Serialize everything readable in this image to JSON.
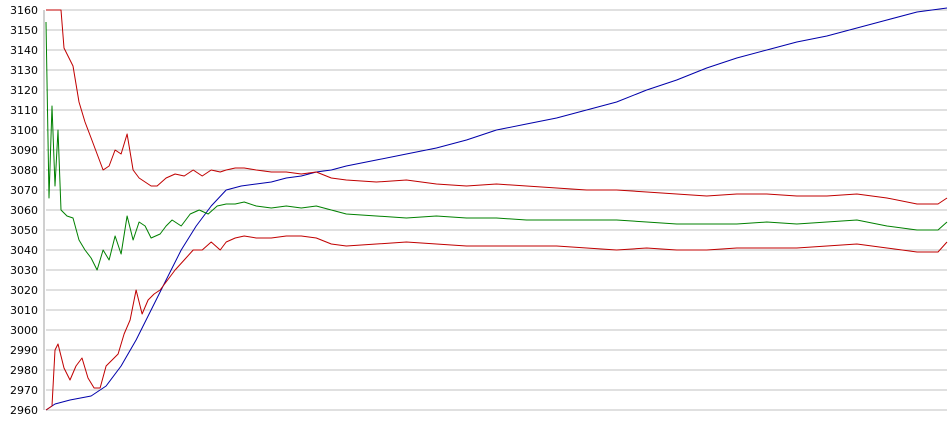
{
  "chart_data": {
    "type": "line",
    "title": "",
    "xlabel": "",
    "ylabel": "",
    "ylim": [
      2960,
      3160
    ],
    "yticks": [
      2960,
      2970,
      2980,
      2990,
      3000,
      3010,
      3020,
      3030,
      3040,
      3050,
      3060,
      3070,
      3080,
      3090,
      3100,
      3110,
      3120,
      3130,
      3140,
      3150,
      3160
    ],
    "grid": true,
    "legend": "none",
    "x_range": [
      0,
      300
    ],
    "series": [
      {
        "color": "#0000aa",
        "points": [
          [
            0,
            2960
          ],
          [
            3,
            2963
          ],
          [
            8,
            2965
          ],
          [
            15,
            2967
          ],
          [
            20,
            2972
          ],
          [
            25,
            2982
          ],
          [
            30,
            2995
          ],
          [
            35,
            3010
          ],
          [
            40,
            3025
          ],
          [
            45,
            3040
          ],
          [
            50,
            3052
          ],
          [
            55,
            3062
          ],
          [
            60,
            3070
          ],
          [
            65,
            3072
          ],
          [
            70,
            3073
          ],
          [
            75,
            3074
          ],
          [
            80,
            3076
          ],
          [
            85,
            3077
          ],
          [
            90,
            3079
          ],
          [
            95,
            3080
          ],
          [
            100,
            3082
          ],
          [
            110,
            3085
          ],
          [
            120,
            3088
          ],
          [
            130,
            3091
          ],
          [
            140,
            3095
          ],
          [
            150,
            3100
          ],
          [
            160,
            3103
          ],
          [
            170,
            3106
          ],
          [
            180,
            3110
          ],
          [
            190,
            3114
          ],
          [
            200,
            3120
          ],
          [
            210,
            3125
          ],
          [
            220,
            3131
          ],
          [
            230,
            3136
          ],
          [
            240,
            3140
          ],
          [
            250,
            3144
          ],
          [
            260,
            3147
          ],
          [
            270,
            3151
          ],
          [
            280,
            3155
          ],
          [
            290,
            3159
          ],
          [
            300,
            3161
          ]
        ]
      },
      {
        "color": "#008000",
        "points": [
          [
            0,
            3154
          ],
          [
            1,
            3066
          ],
          [
            2,
            3112
          ],
          [
            3,
            3072
          ],
          [
            4,
            3100
          ],
          [
            5,
            3060
          ],
          [
            7,
            3057
          ],
          [
            9,
            3056
          ],
          [
            11,
            3045
          ],
          [
            13,
            3040
          ],
          [
            15,
            3036
          ],
          [
            17,
            3030
          ],
          [
            19,
            3040
          ],
          [
            21,
            3035
          ],
          [
            23,
            3047
          ],
          [
            25,
            3038
          ],
          [
            27,
            3057
          ],
          [
            29,
            3045
          ],
          [
            31,
            3054
          ],
          [
            33,
            3052
          ],
          [
            35,
            3046
          ],
          [
            38,
            3048
          ],
          [
            40,
            3052
          ],
          [
            42,
            3055
          ],
          [
            45,
            3052
          ],
          [
            48,
            3058
          ],
          [
            51,
            3060
          ],
          [
            54,
            3058
          ],
          [
            57,
            3062
          ],
          [
            60,
            3063
          ],
          [
            63,
            3063
          ],
          [
            66,
            3064
          ],
          [
            70,
            3062
          ],
          [
            75,
            3061
          ],
          [
            80,
            3062
          ],
          [
            85,
            3061
          ],
          [
            90,
            3062
          ],
          [
            95,
            3060
          ],
          [
            100,
            3058
          ],
          [
            110,
            3057
          ],
          [
            120,
            3056
          ],
          [
            130,
            3057
          ],
          [
            140,
            3056
          ],
          [
            150,
            3056
          ],
          [
            160,
            3055
          ],
          [
            170,
            3055
          ],
          [
            180,
            3055
          ],
          [
            190,
            3055
          ],
          [
            200,
            3054
          ],
          [
            210,
            3053
          ],
          [
            220,
            3053
          ],
          [
            230,
            3053
          ],
          [
            240,
            3054
          ],
          [
            250,
            3053
          ],
          [
            260,
            3054
          ],
          [
            270,
            3055
          ],
          [
            280,
            3052
          ],
          [
            290,
            3050
          ],
          [
            297,
            3050
          ],
          [
            300,
            3054
          ]
        ]
      },
      {
        "color": "#c00000",
        "points": [
          [
            0,
            3160
          ],
          [
            2,
            3160
          ],
          [
            3,
            3160
          ],
          [
            5,
            3160
          ],
          [
            6,
            3141
          ],
          [
            7,
            3138
          ],
          [
            9,
            3132
          ],
          [
            11,
            3114
          ],
          [
            13,
            3104
          ],
          [
            15,
            3096
          ],
          [
            17,
            3088
          ],
          [
            19,
            3080
          ],
          [
            21,
            3082
          ],
          [
            23,
            3090
          ],
          [
            25,
            3088
          ],
          [
            27,
            3098
          ],
          [
            29,
            3080
          ],
          [
            31,
            3076
          ],
          [
            33,
            3074
          ],
          [
            35,
            3072
          ],
          [
            37,
            3072
          ],
          [
            40,
            3076
          ],
          [
            43,
            3078
          ],
          [
            46,
            3077
          ],
          [
            49,
            3080
          ],
          [
            52,
            3077
          ],
          [
            55,
            3080
          ],
          [
            58,
            3079
          ],
          [
            60,
            3080
          ],
          [
            63,
            3081
          ],
          [
            66,
            3081
          ],
          [
            70,
            3080
          ],
          [
            75,
            3079
          ],
          [
            80,
            3079
          ],
          [
            85,
            3078
          ],
          [
            90,
            3079
          ],
          [
            95,
            3076
          ],
          [
            100,
            3075
          ],
          [
            110,
            3074
          ],
          [
            120,
            3075
          ],
          [
            130,
            3073
          ],
          [
            140,
            3072
          ],
          [
            150,
            3073
          ],
          [
            160,
            3072
          ],
          [
            170,
            3071
          ],
          [
            180,
            3070
          ],
          [
            190,
            3070
          ],
          [
            200,
            3069
          ],
          [
            210,
            3068
          ],
          [
            220,
            3067
          ],
          [
            230,
            3068
          ],
          [
            240,
            3068
          ],
          [
            250,
            3067
          ],
          [
            260,
            3067
          ],
          [
            270,
            3068
          ],
          [
            280,
            3066
          ],
          [
            290,
            3063
          ],
          [
            297,
            3063
          ],
          [
            300,
            3066
          ]
        ]
      },
      {
        "color": "#c00000",
        "points": [
          [
            0,
            2960
          ],
          [
            2,
            2962
          ],
          [
            3,
            2990
          ],
          [
            4,
            2993
          ],
          [
            6,
            2981
          ],
          [
            8,
            2975
          ],
          [
            10,
            2982
          ],
          [
            12,
            2986
          ],
          [
            14,
            2976
          ],
          [
            16,
            2971
          ],
          [
            18,
            2971
          ],
          [
            20,
            2982
          ],
          [
            22,
            2985
          ],
          [
            24,
            2988
          ],
          [
            26,
            2998
          ],
          [
            28,
            3005
          ],
          [
            30,
            3020
          ],
          [
            32,
            3008
          ],
          [
            34,
            3015
          ],
          [
            36,
            3018
          ],
          [
            38,
            3020
          ],
          [
            40,
            3024
          ],
          [
            43,
            3030
          ],
          [
            46,
            3035
          ],
          [
            49,
            3040
          ],
          [
            52,
            3040
          ],
          [
            55,
            3044
          ],
          [
            58,
            3040
          ],
          [
            60,
            3044
          ],
          [
            63,
            3046
          ],
          [
            66,
            3047
          ],
          [
            70,
            3046
          ],
          [
            75,
            3046
          ],
          [
            80,
            3047
          ],
          [
            85,
            3047
          ],
          [
            90,
            3046
          ],
          [
            95,
            3043
          ],
          [
            100,
            3042
          ],
          [
            110,
            3043
          ],
          [
            120,
            3044
          ],
          [
            130,
            3043
          ],
          [
            140,
            3042
          ],
          [
            150,
            3042
          ],
          [
            160,
            3042
          ],
          [
            170,
            3042
          ],
          [
            180,
            3041
          ],
          [
            190,
            3040
          ],
          [
            200,
            3041
          ],
          [
            210,
            3040
          ],
          [
            220,
            3040
          ],
          [
            230,
            3041
          ],
          [
            240,
            3041
          ],
          [
            250,
            3041
          ],
          [
            260,
            3042
          ],
          [
            270,
            3043
          ],
          [
            280,
            3041
          ],
          [
            290,
            3039
          ],
          [
            297,
            3039
          ],
          [
            300,
            3044
          ]
        ]
      }
    ]
  }
}
